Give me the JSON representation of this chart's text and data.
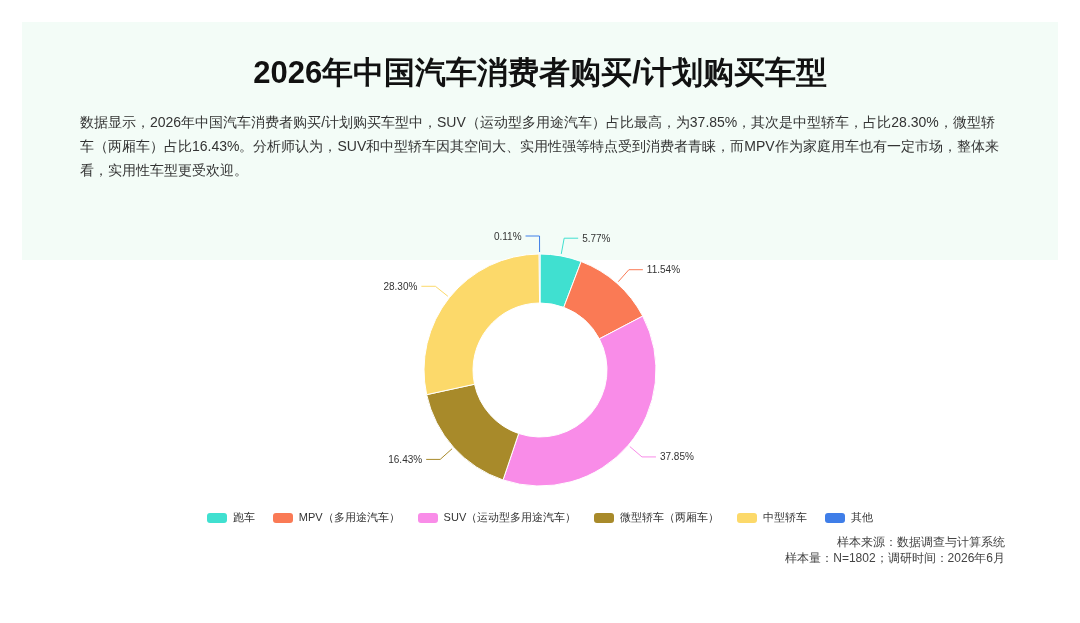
{
  "chart_data": {
    "type": "donut",
    "title": "2026年中国汽车消费者购买/计划购买车型",
    "subtitle": "数据显示，2026年中国汽车消费者购买/计划购买车型中，SUV（运动型多用途汽车）占比最高，为37.85%，其次是中型轿车，占比28.30%，微型轿车（两厢车）占比16.43%。分析师认为，SUV和中型轿车因其空间大、实用性强等特点受到消费者青睐，而MPV作为家庭用车也有一定市场，整体来看，实用性车型更受欢迎。",
    "categories": [
      "跑车",
      "MPV（多用途汽车）",
      "SUV（运动型多用途汽车）",
      "微型轿车（两厢车）",
      "中型轿车",
      "其他"
    ],
    "values": [
      5.77,
      11.54,
      37.85,
      16.43,
      28.3,
      0.11
    ],
    "value_labels": [
      "5.77%",
      "11.54%",
      "37.85%",
      "16.43%",
      "28.30%",
      "0.11%"
    ],
    "colors": [
      "#40e0d0",
      "#fa7a55",
      "#f98ce8",
      "#a88a2a",
      "#fcd96a",
      "#3f7ee8"
    ],
    "legend": "bottom",
    "annotations": [
      "样本来源：数据调查与计算系统",
      "样本量：N=1802；调研时间：2026年6月"
    ]
  }
}
